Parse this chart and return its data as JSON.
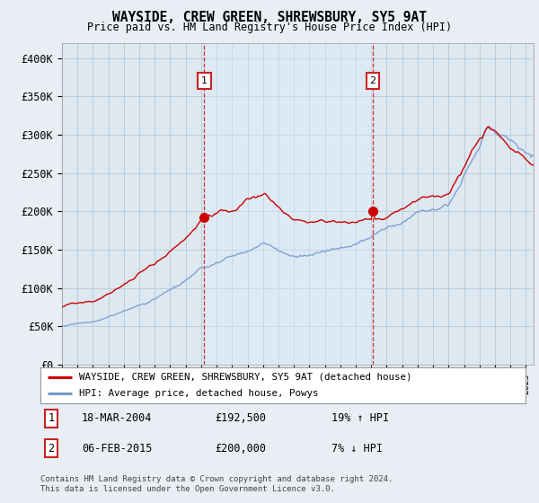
{
  "title": "WAYSIDE, CREW GREEN, SHREWSBURY, SY5 9AT",
  "subtitle": "Price paid vs. HM Land Registry's House Price Index (HPI)",
  "ylabel_ticks": [
    "£0",
    "£50K",
    "£100K",
    "£150K",
    "£200K",
    "£250K",
    "£300K",
    "£350K",
    "£400K"
  ],
  "ytick_vals": [
    0,
    50000,
    100000,
    150000,
    200000,
    250000,
    300000,
    350000,
    400000
  ],
  "ylim": [
    0,
    420000
  ],
  "xlim_start": 1995.0,
  "xlim_end": 2025.5,
  "red_color": "#cc0000",
  "blue_color": "#7799cc",
  "blue_fill_color": "#ddeeff",
  "marker1_x": 2004.2,
  "marker1_y": 192500,
  "marker2_x": 2015.1,
  "marker2_y": 200000,
  "vline1_x": 2004.2,
  "vline2_x": 2015.1,
  "legend_entries": [
    "WAYSIDE, CREW GREEN, SHREWSBURY, SY5 9AT (detached house)",
    "HPI: Average price, detached house, Powys"
  ],
  "table_rows": [
    {
      "num": "1",
      "date": "18-MAR-2004",
      "price": "£192,500",
      "hpi": "19% ↑ HPI"
    },
    {
      "num": "2",
      "date": "06-FEB-2015",
      "price": "£200,000",
      "hpi": "7% ↓ HPI"
    }
  ],
  "footnote": "Contains HM Land Registry data © Crown copyright and database right 2024.\nThis data is licensed under the Open Government Licence v3.0.",
  "bg_color": "#e8eef4",
  "plot_bg_color": "#dde8f0",
  "grid_color": "#b8c8d8",
  "legend_bg": "#ffffff"
}
